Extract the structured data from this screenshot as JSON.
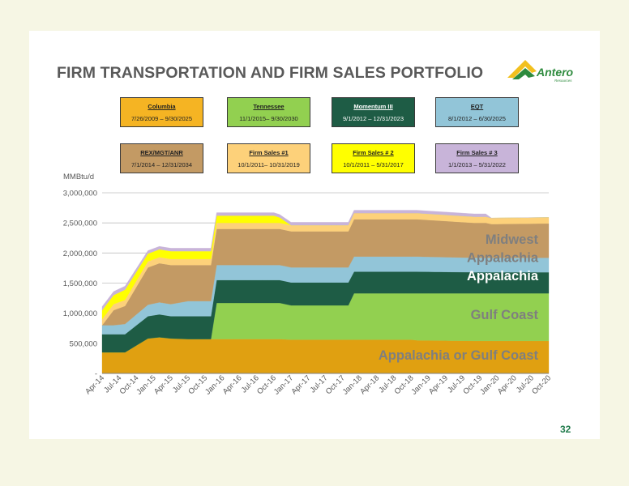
{
  "title": "FIRM TRANSPORTATION AND FIRM SALES PORTFOLIO",
  "logo": {
    "text": "Antero",
    "subtext": "Resources"
  },
  "page_number": "32",
  "contracts": [
    {
      "name": "Columbia",
      "dates": "7/26/2009 – 9/30/2025",
      "color": "#f5b423"
    },
    {
      "name": "Tennessee",
      "dates": "11/1/2015– 9/30/2030",
      "color": "#92d050"
    },
    {
      "name": "Momentum III",
      "dates": "9/1/2012 – 12/31/2023",
      "color": "#1e5c45"
    },
    {
      "name": "EQT",
      "dates": "8/1/2012 – 6/30/2025",
      "color": "#92c5d8"
    },
    {
      "name": "REX/MGT/ANR",
      "dates": "7/1/2014 – 12/31/2034",
      "color": "#c39a64"
    },
    {
      "name": "Firm Sales #1",
      "dates": "10/1/2011– 10/31/2019",
      "color": "#fdd17a"
    },
    {
      "name": "Firm Sales # 2",
      "dates": "10/1/2011 – 5/31/2017",
      "color": "#ffff00"
    },
    {
      "name": "Firm Sales # 3",
      "dates": "1/1/2013 – 5/31/2022",
      "color": "#c8b4d9"
    }
  ],
  "chart_data": {
    "type": "area",
    "ylabel": "MMBtu/d",
    "ylim": [
      0,
      3000000
    ],
    "yticks": [
      "-",
      "500,000",
      "1,000,000",
      "1,500,000",
      "2,000,000",
      "2,500,000",
      "3,000,000"
    ],
    "grid": true,
    "stacked": true,
    "x": [
      "Apr-14",
      "May-14",
      "Jun-14",
      "Jul-14",
      "Aug-14",
      "Sep-14",
      "Oct-14",
      "Nov-14",
      "Dec-14",
      "Jan-15",
      "Feb-15",
      "Mar-15",
      "Apr-15",
      "May-15",
      "Jun-15",
      "Jul-15",
      "Aug-15",
      "Sep-15",
      "Oct-15",
      "Nov-15",
      "Dec-15",
      "Jan-16",
      "Feb-16",
      "Mar-16",
      "Apr-16",
      "May-16",
      "Jun-16",
      "Jul-16",
      "Aug-16",
      "Sep-16",
      "Oct-16",
      "Nov-16",
      "Dec-16",
      "Jan-17",
      "Feb-17",
      "Mar-17",
      "Apr-17",
      "May-17",
      "Jun-17",
      "Jul-17",
      "Aug-17",
      "Sep-17",
      "Oct-17",
      "Nov-17",
      "Dec-17",
      "Jan-18",
      "Feb-18",
      "Mar-18",
      "Apr-18",
      "May-18",
      "Jun-18",
      "Jul-18",
      "Aug-18",
      "Sep-18",
      "Oct-18",
      "Nov-18",
      "Dec-18",
      "Jan-19",
      "Feb-19",
      "Mar-19",
      "Apr-19",
      "May-19",
      "Jun-19",
      "Jul-19",
      "Aug-19",
      "Sep-19",
      "Oct-19",
      "Nov-19",
      "Dec-19",
      "Jan-20",
      "Feb-20",
      "Mar-20",
      "Apr-20",
      "May-20",
      "Jun-20",
      "Jul-20",
      "Aug-20",
      "Sep-20",
      "Oct-20"
    ],
    "xticks": [
      "Apr-14",
      "Jul-14",
      "Oct-14",
      "Jan-15",
      "Apr-15",
      "Jul-15",
      "Oct-15",
      "Jan-16",
      "Apr-16",
      "Jul-16",
      "Oct-16",
      "Jan-17",
      "Apr-17",
      "Jul-17",
      "Oct-17",
      "Jan-18",
      "Apr-18",
      "Jul-18",
      "Oct-18",
      "Jan-19",
      "Apr-19",
      "Jul-19",
      "Oct-19",
      "Jan-20",
      "Apr-20",
      "Jul-20",
      "Oct-20"
    ],
    "breakpoints": [
      {
        "at": "Apr-14",
        "values": [
          350000,
          300000,
          0,
          150000,
          0,
          100000,
          150000,
          60000
        ]
      },
      {
        "at": "Jun-14",
        "values": [
          350000,
          300000,
          0,
          150000,
          250000,
          100000,
          150000,
          60000
        ]
      },
      {
        "at": "Aug-14",
        "values": [
          350000,
          300000,
          0,
          170000,
          300000,
          100000,
          170000,
          60000
        ]
      },
      {
        "at": "Dec-14",
        "values": [
          580000,
          370000,
          0,
          190000,
          620000,
          100000,
          130000,
          50000
        ]
      },
      {
        "at": "Feb-15",
        "values": [
          600000,
          380000,
          0,
          200000,
          650000,
          100000,
          130000,
          50000
        ]
      },
      {
        "at": "Apr-15",
        "values": [
          580000,
          370000,
          0,
          200000,
          650000,
          100000,
          130000,
          50000
        ]
      },
      {
        "at": "Jul-15",
        "values": [
          570000,
          380000,
          0,
          250000,
          600000,
          100000,
          130000,
          50000
        ]
      },
      {
        "at": "Nov-15",
        "values": [
          570000,
          380000,
          0,
          250000,
          600000,
          100000,
          130000,
          50000
        ]
      },
      {
        "at": "Dec-15",
        "values": [
          570000,
          0,
          600000,
          250000,
          600000,
          100000,
          400000,
          50000
        ]
      },
      {
        "at": "Oct-16",
        "values": [
          570000,
          0,
          600000,
          250000,
          600000,
          100000,
          400000,
          50000
        ]
      },
      {
        "at": "Nov-16",
        "values": [
          570000,
          0,
          600000,
          250000,
          600000,
          100000,
          300000,
          50000
        ]
      },
      {
        "at": "Jan-17",
        "values": [
          560000,
          0,
          570000,
          380000,
          600000,
          250000,
          100000,
          50000
        ]
      },
      {
        "at": "Jun-17",
        "values": [
          560000,
          0,
          570000,
          380000,
          600000,
          250000,
          100000,
          50000
        ]
      },
      {
        "at": "Nov-17",
        "values": [
          560000,
          0,
          570000,
          380000,
          600000,
          250000,
          100000,
          50000
        ]
      },
      {
        "at": "Dec-17",
        "values": [
          560000,
          0,
          770000,
          360000,
          620000,
          250000,
          0,
          50000
        ]
      },
      {
        "at": "Oct-18",
        "values": [
          560000,
          0,
          770000,
          360000,
          620000,
          250000,
          0,
          50000
        ]
      },
      {
        "at": "Nov-18",
        "values": [
          550000,
          0,
          780000,
          360000,
          620000,
          250000,
          0,
          50000
        ]
      },
      {
        "at": "Sep-19",
        "values": [
          540000,
          0,
          790000,
          350000,
          240000,
          580000,
          0,
          50000
        ]
      },
      {
        "at": "Nov-19",
        "values": [
          540000,
          0,
          790000,
          350000,
          240000,
          580000,
          0,
          50000
        ]
      },
      {
        "at": "Dec-19",
        "values": [
          540000,
          0,
          790000,
          350000,
          240000,
          560000,
          0,
          0
        ]
      },
      {
        "at": "Oct-20",
        "values": [
          540000,
          0,
          790000,
          350000,
          240000,
          570000,
          0,
          0
        ]
      }
    ],
    "layer_order": [
      "Appalachia or Gulf Coast base",
      "",
      "Gulf Coast",
      "Appalachia",
      "Appalachia",
      "Midwest",
      "",
      ""
    ],
    "layers": [
      {
        "color": "#e0a011",
        "values_bp": [
          350000,
          350000,
          350000,
          580000,
          600000,
          580000,
          570000,
          570000,
          570000,
          570000,
          570000,
          560000,
          560000,
          560000,
          560000,
          560000,
          550000,
          540000,
          540000,
          540000,
          540000
        ]
      },
      {
        "color": "#92d050",
        "values_bp": [
          0,
          0,
          0,
          0,
          0,
          0,
          0,
          0,
          600000,
          600000,
          600000,
          570000,
          570000,
          570000,
          770000,
          770000,
          780000,
          790000,
          790000,
          790000,
          790000
        ]
      },
      {
        "color": "#1e5c45",
        "values_bp": [
          300000,
          300000,
          300000,
          370000,
          380000,
          370000,
          380000,
          380000,
          380000,
          380000,
          380000,
          380000,
          380000,
          380000,
          360000,
          360000,
          360000,
          350000,
          350000,
          350000,
          350000
        ]
      },
      {
        "color": "#92c5d8",
        "values_bp": [
          150000,
          150000,
          170000,
          190000,
          200000,
          200000,
          250000,
          250000,
          250000,
          250000,
          250000,
          250000,
          250000,
          250000,
          250000,
          250000,
          250000,
          240000,
          240000,
          240000,
          240000
        ]
      },
      {
        "color": "#c39a64",
        "values_bp": [
          0,
          250000,
          300000,
          620000,
          650000,
          650000,
          600000,
          600000,
          600000,
          600000,
          600000,
          600000,
          600000,
          600000,
          620000,
          620000,
          620000,
          580000,
          580000,
          560000,
          570000
        ]
      },
      {
        "color": "#fdd17a",
        "values_bp": [
          100000,
          100000,
          100000,
          100000,
          100000,
          100000,
          100000,
          100000,
          100000,
          100000,
          100000,
          100000,
          100000,
          100000,
          100000,
          100000,
          100000,
          100000,
          100000,
          100000,
          100000
        ]
      },
      {
        "color": "#ffff00",
        "values_bp": [
          150000,
          150000,
          170000,
          130000,
          130000,
          130000,
          130000,
          130000,
          120000,
          120000,
          90000,
          0,
          0,
          0,
          0,
          0,
          0,
          0,
          0,
          0,
          0
        ]
      },
      {
        "color": "#c8b4d9",
        "values_bp": [
          60000,
          60000,
          60000,
          50000,
          50000,
          50000,
          50000,
          50000,
          50000,
          50000,
          50000,
          50000,
          50000,
          50000,
          50000,
          50000,
          50000,
          50000,
          50000,
          0,
          0
        ]
      }
    ],
    "labels": [
      {
        "text": "Midwest",
        "y": 2150000,
        "color": "#7f7f7f"
      },
      {
        "text": "Appalachia",
        "y": 1850000,
        "color": "#7f7f7f"
      },
      {
        "text": "Appalachia",
        "y": 1550000,
        "color": "#ffffff"
      },
      {
        "text": "Gulf Coast",
        "y": 900000,
        "color": "#7f7f7f"
      },
      {
        "text": "Appalachia or Gulf Coast",
        "y": 230000,
        "color": "#7f7f7f"
      }
    ]
  }
}
